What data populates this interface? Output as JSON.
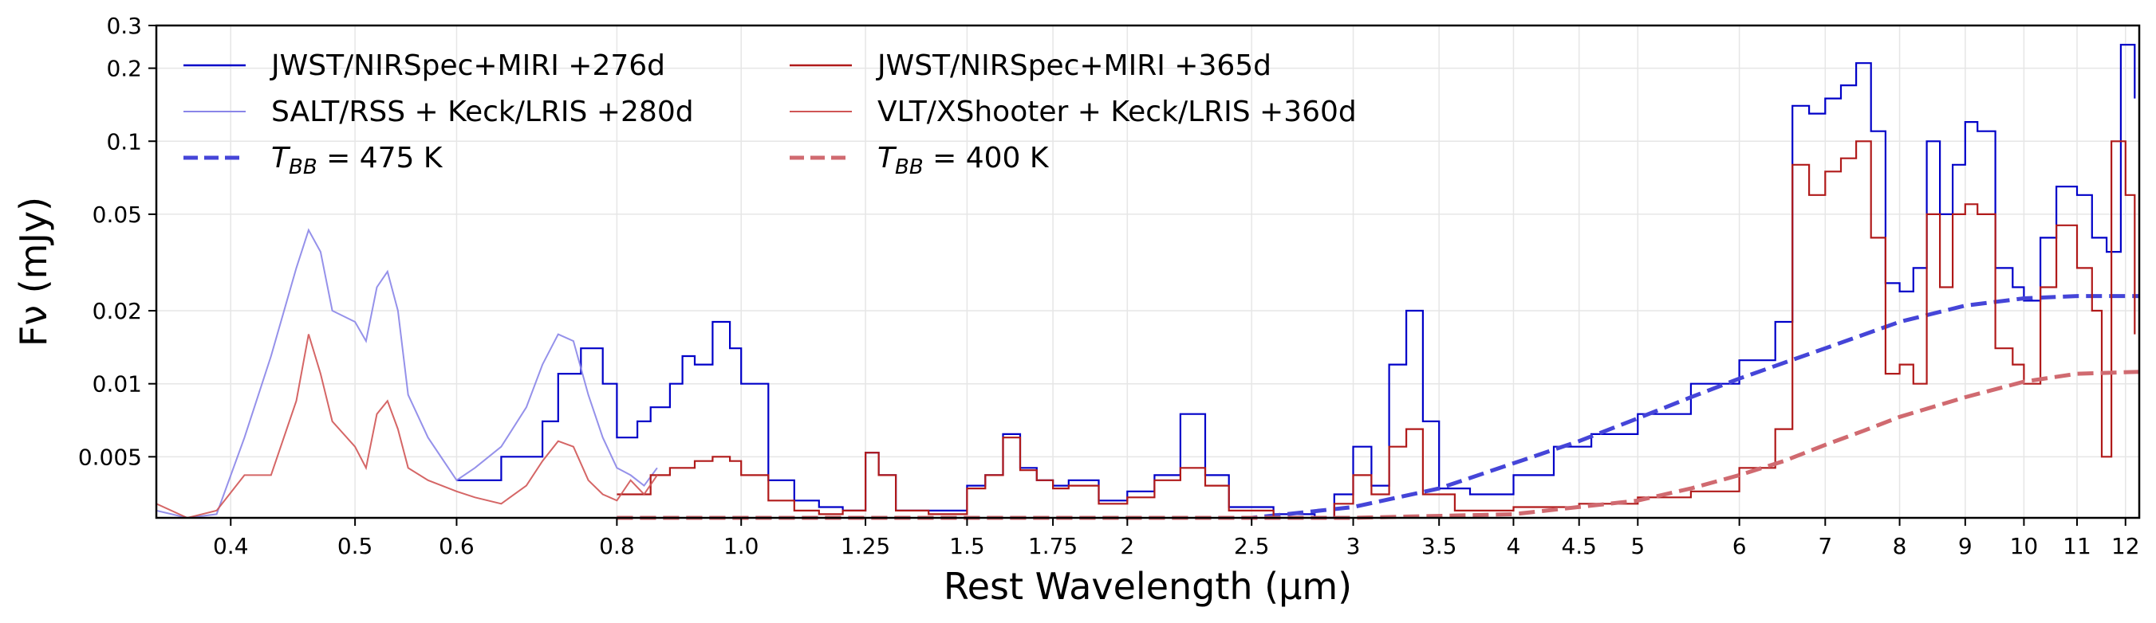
{
  "chart_data": {
    "type": "line",
    "xlabel": "Rest Wavelength (μm)",
    "ylabel": "Fν (mJy)",
    "xscale": "log",
    "yscale": "log",
    "xlim": [
      0.35,
      12.3
    ],
    "ylim": [
      0.0028,
      0.3
    ],
    "grid": true,
    "legend_position": "top-left",
    "x_ticks": [
      0.4,
      0.5,
      0.6,
      0.8,
      1.0,
      1.25,
      1.5,
      1.75,
      2,
      2.5,
      3,
      3.5,
      4,
      4.5,
      5,
      6,
      7,
      8,
      9,
      10,
      11,
      12
    ],
    "x_tick_labels": [
      "0.4",
      "0.5",
      "0.6",
      "0.8",
      "1.0",
      "1.25",
      "1.5",
      "1.75",
      "2",
      "2.5",
      "3",
      "3.5",
      "4",
      "4.5",
      "5",
      "6",
      "7",
      "8",
      "9",
      "10",
      "11",
      "12"
    ],
    "y_ticks": [
      0.005,
      0.01,
      0.02,
      0.05,
      0.1,
      0.2,
      0.3
    ],
    "y_tick_labels": [
      "0.005",
      "0.01",
      "0.02",
      "0.05",
      "0.1",
      "0.2",
      "0.3"
    ],
    "series": [
      {
        "name": "JWST/NIRSpec+MIRI +276d",
        "color": "#0000c8",
        "style": "step",
        "x": [
          0.6,
          0.65,
          0.7,
          0.72,
          0.75,
          0.78,
          0.8,
          0.83,
          0.85,
          0.88,
          0.9,
          0.92,
          0.95,
          0.98,
          1.0,
          1.05,
          1.1,
          1.15,
          1.2,
          1.25,
          1.28,
          1.32,
          1.4,
          1.5,
          1.55,
          1.6,
          1.65,
          1.7,
          1.75,
          1.8,
          1.9,
          2.0,
          2.1,
          2.2,
          2.3,
          2.4,
          2.6,
          2.8,
          2.9,
          3.0,
          3.1,
          3.2,
          3.3,
          3.4,
          3.5,
          3.7,
          4.0,
          4.3,
          4.6,
          5.0,
          5.5,
          6.0,
          6.4,
          6.6,
          6.8,
          7.0,
          7.2,
          7.4,
          7.6,
          7.8,
          8.0,
          8.2,
          8.4,
          8.6,
          8.8,
          9.0,
          9.2,
          9.5,
          9.8,
          10.0,
          10.3,
          10.6,
          11.0,
          11.3,
          11.6,
          11.9,
          12.2
        ],
        "y": [
          0.004,
          0.005,
          0.007,
          0.011,
          0.014,
          0.01,
          0.006,
          0.007,
          0.008,
          0.01,
          0.013,
          0.012,
          0.018,
          0.014,
          0.01,
          0.004,
          0.0033,
          0.0031,
          0.003,
          0.0052,
          0.0042,
          0.003,
          0.003,
          0.0038,
          0.0042,
          0.0062,
          0.0045,
          0.004,
          0.0038,
          0.004,
          0.0033,
          0.0036,
          0.0042,
          0.0075,
          0.0042,
          0.0031,
          0.0029,
          0.0028,
          0.0035,
          0.0055,
          0.0038,
          0.012,
          0.02,
          0.007,
          0.0037,
          0.0035,
          0.0042,
          0.0055,
          0.0062,
          0.0075,
          0.01,
          0.0125,
          0.018,
          0.14,
          0.13,
          0.15,
          0.17,
          0.21,
          0.11,
          0.026,
          0.024,
          0.03,
          0.1,
          0.05,
          0.08,
          0.12,
          0.11,
          0.03,
          0.025,
          0.022,
          0.04,
          0.065,
          0.06,
          0.04,
          0.035,
          0.25,
          0.15
        ]
      },
      {
        "name": "SALT/RSS + Keck/LRIS +280d",
        "color": "#8a85e8",
        "style": "line",
        "x": [
          0.35,
          0.37,
          0.39,
          0.41,
          0.43,
          0.45,
          0.46,
          0.47,
          0.48,
          0.5,
          0.51,
          0.52,
          0.53,
          0.54,
          0.55,
          0.57,
          0.6,
          0.62,
          0.65,
          0.68,
          0.7,
          0.72,
          0.74,
          0.76,
          0.78,
          0.8,
          0.82,
          0.84,
          0.86
        ],
        "y": [
          0.003,
          0.0028,
          0.0029,
          0.006,
          0.013,
          0.03,
          0.043,
          0.035,
          0.02,
          0.018,
          0.015,
          0.025,
          0.029,
          0.02,
          0.009,
          0.006,
          0.004,
          0.0045,
          0.0055,
          0.008,
          0.012,
          0.016,
          0.015,
          0.009,
          0.006,
          0.0045,
          0.0042,
          0.0038,
          0.0045
        ]
      },
      {
        "name": "T_BB = 475 K",
        "color": "#4545d8",
        "style": "dashed",
        "x": [
          0.8,
          1.0,
          1.5,
          2.0,
          2.5,
          3.0,
          3.5,
          4.0,
          4.5,
          5.0,
          5.5,
          6.0,
          7.0,
          8.0,
          9.0,
          10.0,
          11.0,
          12.3
        ],
        "y": [
          0.0028,
          0.0028,
          0.0028,
          0.0028,
          0.0028,
          0.0031,
          0.0037,
          0.0047,
          0.0058,
          0.0072,
          0.0088,
          0.0105,
          0.014,
          0.018,
          0.021,
          0.0225,
          0.023,
          0.023
        ]
      },
      {
        "name": "JWST/NIRSpec+MIRI +365d",
        "color": "#b01a1a",
        "style": "step",
        "x": [
          0.8,
          0.85,
          0.88,
          0.92,
          0.95,
          0.98,
          1.0,
          1.05,
          1.1,
          1.15,
          1.2,
          1.25,
          1.28,
          1.32,
          1.4,
          1.5,
          1.55,
          1.6,
          1.65,
          1.7,
          1.75,
          1.8,
          1.9,
          2.0,
          2.1,
          2.2,
          2.3,
          2.4,
          2.6,
          2.8,
          2.9,
          3.0,
          3.1,
          3.2,
          3.3,
          3.4,
          3.6,
          4.0,
          4.5,
          5.0,
          5.5,
          6.0,
          6.4,
          6.6,
          6.8,
          7.0,
          7.2,
          7.4,
          7.6,
          7.8,
          8.0,
          8.2,
          8.4,
          8.6,
          8.8,
          9.0,
          9.2,
          9.5,
          9.8,
          10.0,
          10.3,
          10.6,
          11.0,
          11.3,
          11.5,
          11.7,
          12.0,
          12.2
        ],
        "y": [
          0.0035,
          0.0042,
          0.0045,
          0.0048,
          0.005,
          0.0048,
          0.0042,
          0.0033,
          0.003,
          0.0029,
          0.003,
          0.0052,
          0.0042,
          0.003,
          0.0029,
          0.0037,
          0.0042,
          0.006,
          0.0044,
          0.004,
          0.0037,
          0.0038,
          0.0032,
          0.0034,
          0.004,
          0.0045,
          0.0038,
          0.003,
          0.0028,
          0.0028,
          0.0032,
          0.0042,
          0.0035,
          0.0055,
          0.0065,
          0.0035,
          0.003,
          0.0031,
          0.0032,
          0.0034,
          0.0036,
          0.0045,
          0.0065,
          0.08,
          0.06,
          0.075,
          0.085,
          0.1,
          0.04,
          0.011,
          0.012,
          0.01,
          0.05,
          0.025,
          0.05,
          0.055,
          0.05,
          0.014,
          0.012,
          0.01,
          0.025,
          0.045,
          0.03,
          0.02,
          0.005,
          0.1,
          0.06,
          0.016
        ]
      },
      {
        "name": "VLT/XShooter + Keck/LRIS +360d",
        "color": "#d05555",
        "style": "line",
        "x": [
          0.35,
          0.37,
          0.39,
          0.41,
          0.43,
          0.45,
          0.46,
          0.47,
          0.48,
          0.5,
          0.51,
          0.52,
          0.53,
          0.54,
          0.55,
          0.57,
          0.6,
          0.62,
          0.65,
          0.68,
          0.7,
          0.72,
          0.74,
          0.76,
          0.78,
          0.8,
          0.82,
          0.84,
          0.86
        ],
        "y": [
          0.0032,
          0.0028,
          0.003,
          0.0042,
          0.0042,
          0.0085,
          0.016,
          0.011,
          0.007,
          0.0055,
          0.0045,
          0.0075,
          0.0085,
          0.0065,
          0.0045,
          0.004,
          0.0036,
          0.0034,
          0.0032,
          0.0038,
          0.0048,
          0.0058,
          0.0055,
          0.004,
          0.0035,
          0.0033,
          0.004,
          0.0035,
          0.0042
        ]
      },
      {
        "name": "T_BB = 400 K",
        "color": "#d06a70",
        "style": "dashed",
        "x": [
          0.8,
          1.0,
          2.0,
          3.0,
          4.0,
          5.0,
          5.5,
          6.0,
          6.5,
          7.0,
          7.5,
          8.0,
          9.0,
          10.0,
          11.0,
          12.3
        ],
        "y": [
          0.0028,
          0.0028,
          0.0028,
          0.0028,
          0.0029,
          0.0033,
          0.0037,
          0.0042,
          0.0048,
          0.0056,
          0.0064,
          0.0073,
          0.0088,
          0.0102,
          0.011,
          0.0112
        ]
      }
    ],
    "legend": [
      {
        "label": "JWST/NIRSpec+MIRI +276d",
        "style": "solid",
        "color": "#0000c8",
        "column": 0
      },
      {
        "label": "SALT/RSS + Keck/LRIS +280d",
        "style": "thin",
        "color": "#8a85e8",
        "column": 0
      },
      {
        "label_prefix": "T",
        "label_sub": "BB",
        "label_suffix": " = 475 K",
        "style": "dashed",
        "color": "#4545d8",
        "column": 0
      },
      {
        "label": "JWST/NIRSpec+MIRI +365d",
        "style": "solid",
        "color": "#b01a1a",
        "column": 1
      },
      {
        "label": "VLT/XShooter + Keck/LRIS +360d",
        "style": "thin",
        "color": "#d05555",
        "column": 1
      },
      {
        "label_prefix": "T",
        "label_sub": "BB",
        "label_suffix": " = 400 K",
        "style": "dashed",
        "color": "#d06a70",
        "column": 1
      }
    ]
  }
}
